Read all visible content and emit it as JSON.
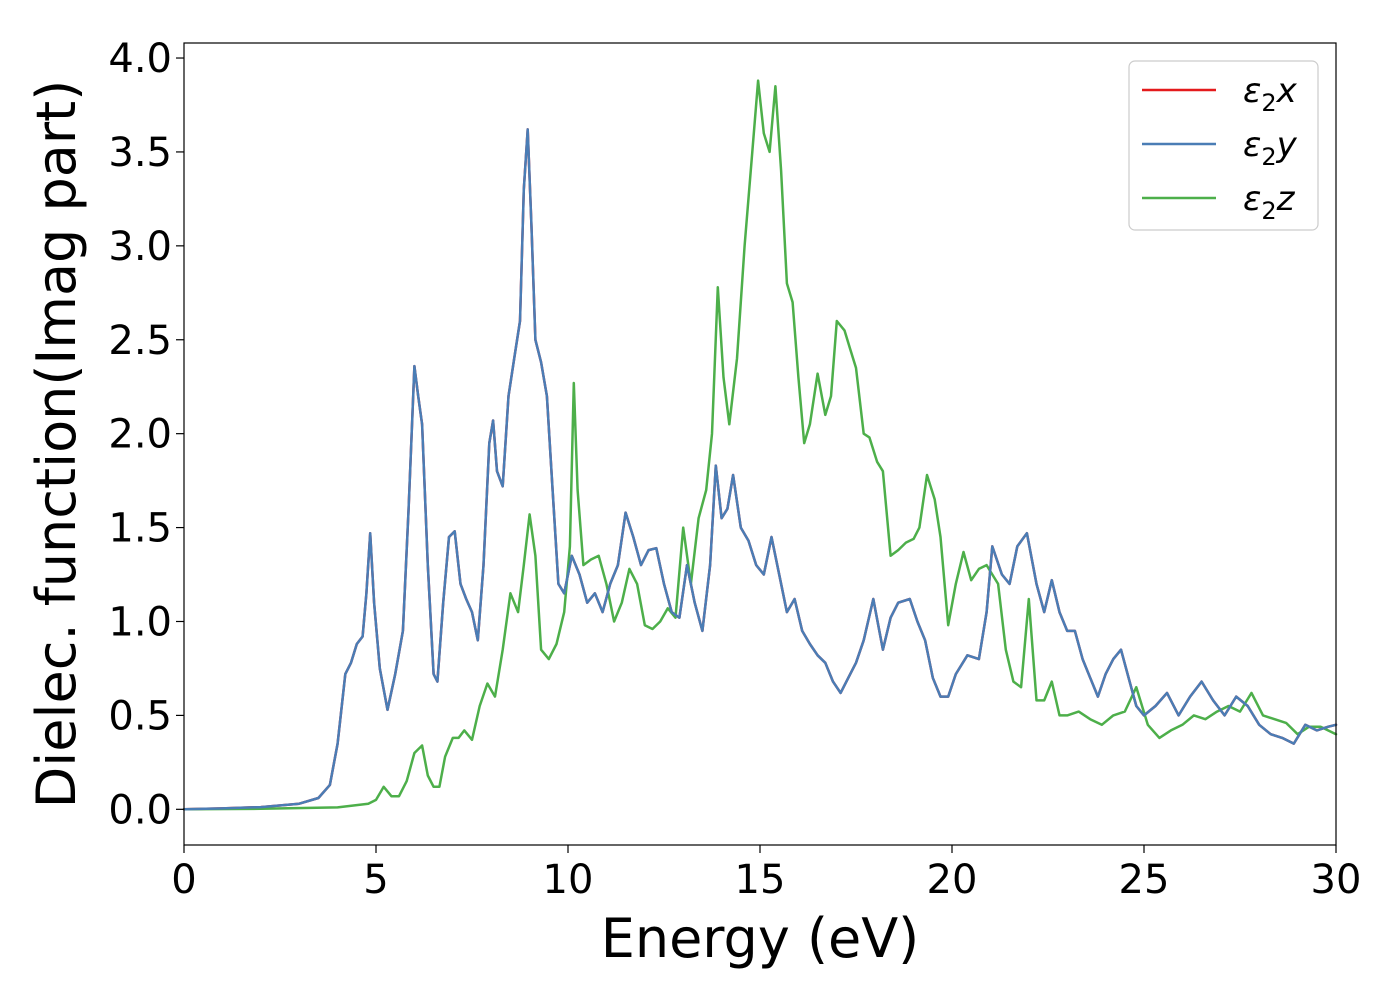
{
  "chart_data": {
    "type": "line",
    "title": "",
    "xlabel": "Energy (eV)",
    "ylabel": "Dielec. function(Imag part)",
    "xlim": [
      0,
      30
    ],
    "ylim": [
      -0.19,
      4.08
    ],
    "xticks": [
      "0",
      "5",
      "10",
      "15",
      "20",
      "25",
      "30"
    ],
    "yticks": [
      "0.0",
      "0.5",
      "1.0",
      "1.5",
      "2.0",
      "2.5",
      "3.0",
      "3.5",
      "4.0"
    ],
    "grid": false,
    "legend_position": "top-right",
    "series": [
      {
        "name": "ε2x",
        "legend": {
          "base": "ε",
          "sub": "2",
          "var": "x"
        },
        "color": "#e41a1c",
        "x": [
          0,
          1,
          2,
          3,
          3.5,
          3.8,
          4.0,
          4.2,
          4.35,
          4.5,
          4.65,
          4.75,
          4.85,
          4.95,
          5.1,
          5.3,
          5.5,
          5.7,
          5.85,
          6.0,
          6.1,
          6.2,
          6.35,
          6.5,
          6.6,
          6.75,
          6.9,
          7.05,
          7.2,
          7.35,
          7.5,
          7.65,
          7.8,
          7.95,
          8.05,
          8.15,
          8.3,
          8.45,
          8.6,
          8.75,
          8.85,
          8.95,
          9.05,
          9.15,
          9.3,
          9.45,
          9.6,
          9.75,
          9.9,
          10.1,
          10.3,
          10.5,
          10.7,
          10.9,
          11.1,
          11.3,
          11.5,
          11.7,
          11.9,
          12.1,
          12.3,
          12.5,
          12.7,
          12.9,
          13.1,
          13.3,
          13.5,
          13.7,
          13.85,
          14.0,
          14.15,
          14.3,
          14.5,
          14.7,
          14.9,
          15.1,
          15.3,
          15.5,
          15.7,
          15.9,
          16.1,
          16.3,
          16.5,
          16.7,
          16.9,
          17.1,
          17.3,
          17.5,
          17.7,
          17.95,
          18.2,
          18.4,
          18.6,
          18.9,
          19.1,
          19.3,
          19.5,
          19.7,
          19.9,
          20.1,
          20.4,
          20.7,
          20.9,
          21.05,
          21.3,
          21.5,
          21.7,
          21.95,
          22.2,
          22.4,
          22.6,
          22.8,
          23.0,
          23.2,
          23.4,
          23.6,
          23.8,
          24.0,
          24.2,
          24.4,
          24.6,
          24.8,
          25.0,
          25.3,
          25.6,
          25.9,
          26.2,
          26.5,
          26.8,
          27.1,
          27.4,
          27.7,
          28.0,
          28.3,
          28.6,
          28.9,
          29.2,
          29.5,
          29.8,
          30.0
        ],
        "y": [
          0.0,
          0.005,
          0.012,
          0.03,
          0.06,
          0.13,
          0.35,
          0.72,
          0.78,
          0.88,
          0.92,
          1.15,
          1.47,
          1.1,
          0.75,
          0.53,
          0.72,
          0.95,
          1.6,
          2.36,
          2.2,
          2.05,
          1.3,
          0.72,
          0.68,
          1.1,
          1.45,
          1.48,
          1.2,
          1.12,
          1.05,
          0.9,
          1.3,
          1.95,
          2.07,
          1.8,
          1.72,
          2.2,
          2.4,
          2.6,
          3.3,
          3.62,
          3.1,
          2.5,
          2.38,
          2.2,
          1.7,
          1.2,
          1.15,
          1.35,
          1.25,
          1.1,
          1.15,
          1.05,
          1.2,
          1.3,
          1.58,
          1.45,
          1.3,
          1.38,
          1.39,
          1.2,
          1.05,
          1.02,
          1.3,
          1.1,
          0.95,
          1.3,
          1.83,
          1.55,
          1.6,
          1.78,
          1.5,
          1.43,
          1.3,
          1.25,
          1.45,
          1.25,
          1.05,
          1.12,
          0.95,
          0.88,
          0.82,
          0.78,
          0.68,
          0.62,
          0.7,
          0.78,
          0.9,
          1.12,
          0.85,
          1.02,
          1.1,
          1.12,
          1.0,
          0.9,
          0.7,
          0.6,
          0.6,
          0.72,
          0.82,
          0.8,
          1.05,
          1.4,
          1.25,
          1.2,
          1.4,
          1.47,
          1.2,
          1.05,
          1.22,
          1.05,
          0.95,
          0.95,
          0.8,
          0.7,
          0.6,
          0.72,
          0.8,
          0.85,
          0.7,
          0.55,
          0.5,
          0.55,
          0.62,
          0.5,
          0.6,
          0.68,
          0.58,
          0.5,
          0.6,
          0.55,
          0.45,
          0.4,
          0.38,
          0.35,
          0.45,
          0.42,
          0.44,
          0.45
        ]
      },
      {
        "name": "ε2y",
        "legend": {
          "base": "ε",
          "sub": "2",
          "var": "y"
        },
        "color": "#4a7db5",
        "x": [
          0,
          1,
          2,
          3,
          3.5,
          3.8,
          4.0,
          4.2,
          4.35,
          4.5,
          4.65,
          4.75,
          4.85,
          4.95,
          5.1,
          5.3,
          5.5,
          5.7,
          5.85,
          6.0,
          6.1,
          6.2,
          6.35,
          6.5,
          6.6,
          6.75,
          6.9,
          7.05,
          7.2,
          7.35,
          7.5,
          7.65,
          7.8,
          7.95,
          8.05,
          8.15,
          8.3,
          8.45,
          8.6,
          8.75,
          8.85,
          8.95,
          9.05,
          9.15,
          9.3,
          9.45,
          9.6,
          9.75,
          9.9,
          10.1,
          10.3,
          10.5,
          10.7,
          10.9,
          11.1,
          11.3,
          11.5,
          11.7,
          11.9,
          12.1,
          12.3,
          12.5,
          12.7,
          12.9,
          13.1,
          13.3,
          13.5,
          13.7,
          13.85,
          14.0,
          14.15,
          14.3,
          14.5,
          14.7,
          14.9,
          15.1,
          15.3,
          15.5,
          15.7,
          15.9,
          16.1,
          16.3,
          16.5,
          16.7,
          16.9,
          17.1,
          17.3,
          17.5,
          17.7,
          17.95,
          18.2,
          18.4,
          18.6,
          18.9,
          19.1,
          19.3,
          19.5,
          19.7,
          19.9,
          20.1,
          20.4,
          20.7,
          20.9,
          21.05,
          21.3,
          21.5,
          21.7,
          21.95,
          22.2,
          22.4,
          22.6,
          22.8,
          23.0,
          23.2,
          23.4,
          23.6,
          23.8,
          24.0,
          24.2,
          24.4,
          24.6,
          24.8,
          25.0,
          25.3,
          25.6,
          25.9,
          26.2,
          26.5,
          26.8,
          27.1,
          27.4,
          27.7,
          28.0,
          28.3,
          28.6,
          28.9,
          29.2,
          29.5,
          29.8,
          30.0
        ],
        "y": [
          0.0,
          0.005,
          0.012,
          0.03,
          0.06,
          0.13,
          0.35,
          0.72,
          0.78,
          0.88,
          0.92,
          1.15,
          1.47,
          1.1,
          0.75,
          0.53,
          0.72,
          0.95,
          1.6,
          2.36,
          2.2,
          2.05,
          1.3,
          0.72,
          0.68,
          1.1,
          1.45,
          1.48,
          1.2,
          1.12,
          1.05,
          0.9,
          1.3,
          1.95,
          2.07,
          1.8,
          1.72,
          2.2,
          2.4,
          2.6,
          3.3,
          3.62,
          3.1,
          2.5,
          2.38,
          2.2,
          1.7,
          1.2,
          1.15,
          1.35,
          1.25,
          1.1,
          1.15,
          1.05,
          1.2,
          1.3,
          1.58,
          1.45,
          1.3,
          1.38,
          1.39,
          1.2,
          1.05,
          1.02,
          1.3,
          1.1,
          0.95,
          1.3,
          1.83,
          1.55,
          1.6,
          1.78,
          1.5,
          1.43,
          1.3,
          1.25,
          1.45,
          1.25,
          1.05,
          1.12,
          0.95,
          0.88,
          0.82,
          0.78,
          0.68,
          0.62,
          0.7,
          0.78,
          0.9,
          1.12,
          0.85,
          1.02,
          1.1,
          1.12,
          1.0,
          0.9,
          0.7,
          0.6,
          0.6,
          0.72,
          0.82,
          0.8,
          1.05,
          1.4,
          1.25,
          1.2,
          1.4,
          1.47,
          1.2,
          1.05,
          1.22,
          1.05,
          0.95,
          0.95,
          0.8,
          0.7,
          0.6,
          0.72,
          0.8,
          0.85,
          0.7,
          0.55,
          0.5,
          0.55,
          0.62,
          0.5,
          0.6,
          0.68,
          0.58,
          0.5,
          0.6,
          0.55,
          0.45,
          0.4,
          0.38,
          0.35,
          0.45,
          0.42,
          0.44,
          0.45
        ]
      },
      {
        "name": "ε2z",
        "legend": {
          "base": "ε",
          "sub": "2",
          "var": "z"
        },
        "color": "#4daf4a",
        "x": [
          0,
          2,
          4,
          4.8,
          5.0,
          5.2,
          5.4,
          5.6,
          5.8,
          6.0,
          6.2,
          6.35,
          6.5,
          6.65,
          6.8,
          7.0,
          7.15,
          7.3,
          7.5,
          7.7,
          7.9,
          8.1,
          8.3,
          8.5,
          8.7,
          8.85,
          9.0,
          9.15,
          9.3,
          9.5,
          9.7,
          9.9,
          10.05,
          10.15,
          10.25,
          10.4,
          10.6,
          10.8,
          11.0,
          11.2,
          11.4,
          11.6,
          11.8,
          12.0,
          12.2,
          12.4,
          12.6,
          12.8,
          13.0,
          13.2,
          13.4,
          13.6,
          13.75,
          13.9,
          14.05,
          14.2,
          14.4,
          14.6,
          14.8,
          14.95,
          15.1,
          15.25,
          15.4,
          15.55,
          15.7,
          15.85,
          16.0,
          16.15,
          16.3,
          16.5,
          16.7,
          16.85,
          17.0,
          17.2,
          17.35,
          17.5,
          17.7,
          17.85,
          18.05,
          18.2,
          18.4,
          18.6,
          18.8,
          19.0,
          19.15,
          19.35,
          19.55,
          19.7,
          19.9,
          20.1,
          20.3,
          20.5,
          20.7,
          20.9,
          21.05,
          21.2,
          21.4,
          21.6,
          21.8,
          22.0,
          22.2,
          22.4,
          22.6,
          22.8,
          23.0,
          23.3,
          23.6,
          23.9,
          24.2,
          24.5,
          24.8,
          25.1,
          25.4,
          25.7,
          26.0,
          26.3,
          26.6,
          26.9,
          27.2,
          27.5,
          27.8,
          28.1,
          28.4,
          28.7,
          29.0,
          29.3,
          29.6,
          30.0
        ],
        "y": [
          0.0,
          0.003,
          0.01,
          0.03,
          0.05,
          0.12,
          0.07,
          0.07,
          0.15,
          0.3,
          0.34,
          0.18,
          0.12,
          0.12,
          0.28,
          0.38,
          0.38,
          0.42,
          0.37,
          0.55,
          0.67,
          0.6,
          0.85,
          1.15,
          1.05,
          1.3,
          1.57,
          1.35,
          0.85,
          0.8,
          0.88,
          1.05,
          1.4,
          2.27,
          1.7,
          1.3,
          1.33,
          1.35,
          1.2,
          1.0,
          1.1,
          1.28,
          1.2,
          0.98,
          0.96,
          1.0,
          1.07,
          1.02,
          1.5,
          1.2,
          1.55,
          1.7,
          2.0,
          2.78,
          2.3,
          2.05,
          2.4,
          3.0,
          3.5,
          3.88,
          3.6,
          3.5,
          3.85,
          3.4,
          2.8,
          2.7,
          2.3,
          1.95,
          2.05,
          2.32,
          2.1,
          2.2,
          2.6,
          2.55,
          2.45,
          2.35,
          2.0,
          1.98,
          1.85,
          1.8,
          1.35,
          1.38,
          1.42,
          1.44,
          1.5,
          1.78,
          1.65,
          1.45,
          0.98,
          1.2,
          1.37,
          1.22,
          1.28,
          1.3,
          1.25,
          1.2,
          0.85,
          0.68,
          0.65,
          1.12,
          0.58,
          0.58,
          0.68,
          0.5,
          0.5,
          0.52,
          0.48,
          0.45,
          0.5,
          0.52,
          0.65,
          0.45,
          0.38,
          0.42,
          0.45,
          0.5,
          0.48,
          0.52,
          0.55,
          0.52,
          0.62,
          0.5,
          0.48,
          0.46,
          0.4,
          0.44,
          0.44,
          0.4
        ]
      }
    ]
  }
}
